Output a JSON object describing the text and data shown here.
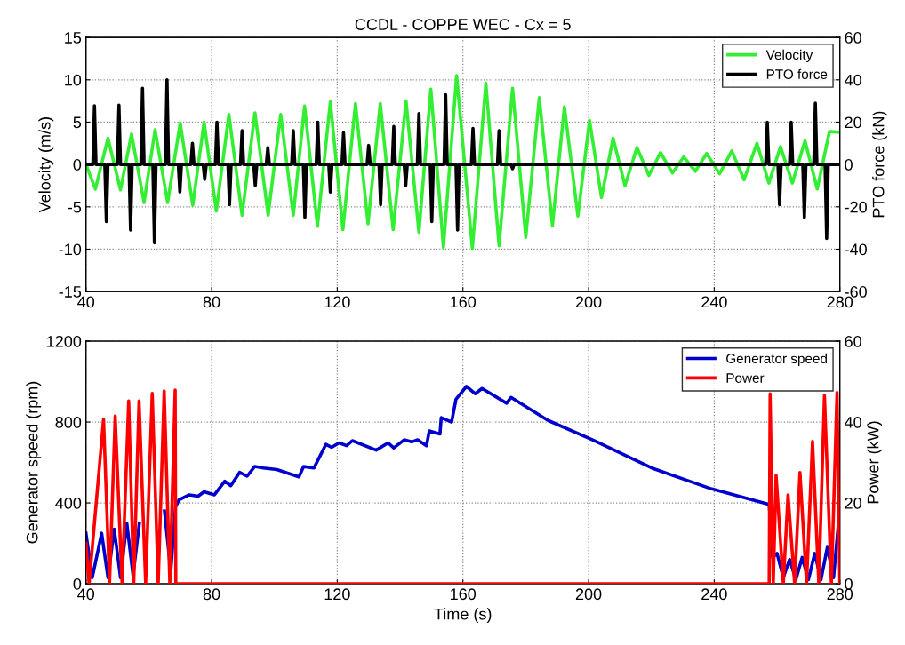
{
  "chart_data": [
    {
      "type": "line",
      "title": "CCDL - COPPE WEC - Cx = 5",
      "ylabel": "Velocity (m/s)",
      "y2label": "PTO force (kN)",
      "xlim": [
        40,
        280
      ],
      "xticks": [
        40,
        80,
        120,
        160,
        200,
        240,
        280
      ],
      "ylim": [
        -15,
        15
      ],
      "yticks": [
        -15,
        -10,
        -5,
        0,
        5,
        10,
        15
      ],
      "y2lim": [
        -60,
        60
      ],
      "y2ticks": [
        -60,
        -40,
        -20,
        0,
        20,
        40,
        60
      ],
      "grid": true,
      "legend": "top right",
      "series": [
        {
          "name": "Velocity",
          "color": "#33ee33",
          "x": [
            40,
            43,
            47,
            51,
            54.5,
            58.5,
            62,
            66,
            70,
            74,
            77.6,
            81.5,
            85.5,
            89.7,
            93.8,
            98,
            102,
            106,
            109.6,
            113.7,
            117.8,
            121.8,
            125.8,
            129.8,
            133.7,
            137.8,
            141.9,
            146,
            149.8,
            153.8,
            158,
            163,
            167.3,
            171.5,
            175.8,
            180,
            184.3,
            188.5,
            192.3,
            196.6,
            200.3,
            204.1,
            207.8,
            211.6,
            215.4,
            219.2,
            222.9,
            226.7,
            230.3,
            234,
            237.6,
            241.7,
            245.6,
            249.5,
            253.6,
            257.4,
            261.1,
            264.9,
            268.9,
            272.8,
            276.7,
            280
          ],
          "values": [
            0,
            -2.9,
            3.1,
            -3,
            3.6,
            -4.5,
            4.1,
            -4.5,
            4.9,
            -4.8,
            5,
            -5.5,
            5.9,
            -6,
            6.1,
            -6,
            5.9,
            -6,
            6.9,
            -7.3,
            7.4,
            -7.7,
            7.2,
            -7,
            7.2,
            -7.7,
            7.5,
            -8,
            8.9,
            -9.8,
            10.5,
            -9.9,
            9.6,
            -9.6,
            9,
            -8.6,
            7.9,
            -7.2,
            6.8,
            -6.1,
            5.2,
            -3.9,
            3.1,
            -2.5,
            2,
            -1.3,
            1.4,
            -1,
            0.9,
            -0.8,
            1.3,
            -1.1,
            1.6,
            -1.8,
            2.5,
            -2.2,
            2.1,
            -2.2,
            2.8,
            -2.9,
            3.9,
            3.8
          ]
        },
        {
          "name": "PTO force",
          "color": "#000000",
          "axis": "y2",
          "x": [
            40,
            42.2,
            42.7,
            43.2,
            46,
            46.5,
            47,
            50,
            50.5,
            51,
            53.7,
            54.2,
            54.7,
            57.5,
            58,
            58.5,
            61.3,
            61.8,
            62.3,
            65.3,
            65.8,
            66.3,
            69.4,
            69.9,
            70.4,
            73.4,
            73.9,
            74.4,
            77.3,
            77.8,
            78.3,
            81.2,
            81.7,
            82.2,
            85.2,
            85.7,
            86.2,
            89.2,
            89.7,
            90.2,
            93.4,
            93.9,
            94.4,
            97.4,
            97.9,
            98.4,
            105.5,
            106,
            106.5,
            109.2,
            109.7,
            110.2,
            113.3,
            113.8,
            114.3,
            117.3,
            117.8,
            118.3,
            121.5,
            122,
            122.5,
            129.5,
            130,
            130.5,
            133.3,
            133.8,
            134.3,
            137.5,
            138,
            138.5,
            141.3,
            141.8,
            142.3,
            145.5,
            146,
            146.5,
            149.6,
            150.1,
            150.6,
            154,
            154.5,
            155,
            157.8,
            158.3,
            158.8,
            162.7,
            163.2,
            163.7,
            171,
            171.5,
            172,
            175.3,
            175.8,
            176.3,
            256.4,
            256.9,
            257.4,
            260.3,
            260.8,
            261.3,
            264,
            264.5,
            265,
            268.2,
            268.7,
            269.2,
            271.7,
            272.2,
            272.7,
            275.3,
            275.8,
            276.3,
            280
          ],
          "values": [
            0,
            0,
            27.7,
            0,
            0,
            -27,
            0,
            0,
            28,
            0,
            0,
            -31,
            0,
            0,
            36,
            0,
            0,
            -37,
            0,
            0,
            40,
            0,
            0,
            -13,
            0,
            0,
            10,
            0,
            0,
            -7,
            0,
            0,
            20,
            0,
            0,
            -19,
            0,
            0,
            16,
            0,
            0,
            -10,
            0,
            0,
            8,
            0,
            0,
            16,
            0,
            0,
            -25,
            0,
            0,
            20,
            0,
            0,
            -13,
            0,
            0,
            15,
            0,
            0,
            9,
            0,
            0,
            -19,
            0,
            0,
            18,
            0,
            0,
            -10,
            0,
            0,
            24,
            0,
            0,
            -27,
            0,
            0,
            33,
            0,
            0,
            -31,
            0,
            0,
            17,
            0,
            0,
            16,
            0,
            0,
            -2,
            0,
            0,
            20,
            0,
            0,
            -19,
            0,
            0,
            20,
            0,
            0,
            -25,
            0,
            0,
            29,
            0,
            0,
            -35,
            0,
            0
          ]
        }
      ]
    },
    {
      "type": "line",
      "xlabel": "Time (s)",
      "ylabel": "Generator speed (rpm)",
      "y2label": "Power (kW)",
      "xlim": [
        40,
        280
      ],
      "xticks": [
        40,
        80,
        120,
        160,
        200,
        240,
        280
      ],
      "ylim": [
        0,
        1200
      ],
      "yticks": [
        0,
        400,
        800,
        1200
      ],
      "y2lim": [
        0,
        60
      ],
      "y2ticks": [
        0,
        20,
        40,
        60
      ],
      "grid": true,
      "legend": "top right",
      "series": [
        {
          "name": "Generator speed",
          "color": "#0000cc",
          "x": [
            40,
            42,
            45,
            47,
            49,
            51,
            53,
            55,
            57,
            59,
            61,
            63,
            65,
            67,
            68.5,
            69.6,
            72.9,
            75.7,
            77.6,
            80.9,
            84.2,
            86.1,
            88.9,
            91.3,
            93.7,
            96.5,
            100.8,
            107.8,
            109.3,
            112.6,
            116.4,
            118.2,
            120.6,
            123,
            124.8,
            132.4,
            136.2,
            138,
            141.3,
            143.7,
            145.6,
            148.4,
            149.3,
            152.7,
            153.1,
            156.4,
            157.8,
            161.1,
            163.9,
            166.1,
            173.9,
            175.3,
            187.1,
            201.3,
            220.1,
            239,
            256.7,
            257.5,
            258.6,
            260,
            262,
            264,
            266,
            268,
            270,
            272,
            274,
            276,
            278,
            280
          ],
          "values": [
            250,
            30,
            250,
            30,
            270,
            30,
            300,
            40,
            300,
            null,
            null,
            null,
            360,
            60,
            380,
            415,
            440,
            433,
            455,
            440,
            507,
            485,
            551,
            532,
            580,
            573,
            565,
            529,
            580,
            573,
            690,
            675,
            697,
            683,
            708,
            661,
            697,
            672,
            712,
            702,
            712,
            683,
            756,
            741,
            822,
            800,
            913,
            976,
            940,
            966,
            893,
            922,
            808,
            712,
            573,
            470,
            396,
            390,
            130,
            150,
            30,
            120,
            20,
            130,
            20,
            150,
            20,
            180,
            30,
            380
          ]
        },
        {
          "name": "Power",
          "color": "#ff0000",
          "axis": "y2",
          "x": [
            40,
            41,
            45.6,
            47.5,
            49.3,
            51.5,
            53.6,
            55.2,
            56.9,
            59,
            61.1,
            63,
            64.9,
            66.7,
            68.4,
            68.6,
            257.5,
            257.8,
            258.8,
            259.7,
            262,
            263.5,
            265.6,
            267.3,
            269.4,
            271.3,
            273.3,
            275.1,
            277.3,
            279.1,
            280
          ],
          "values": [
            10,
            0,
            40.7,
            0,
            41.5,
            0,
            45.2,
            0,
            45.2,
            0,
            47.1,
            0,
            47.7,
            0,
            47.9,
            0,
            0,
            47,
            0,
            26.8,
            0,
            22,
            0,
            27.5,
            0,
            35.2,
            0,
            46.6,
            0,
            47.3,
            0
          ]
        }
      ]
    }
  ]
}
